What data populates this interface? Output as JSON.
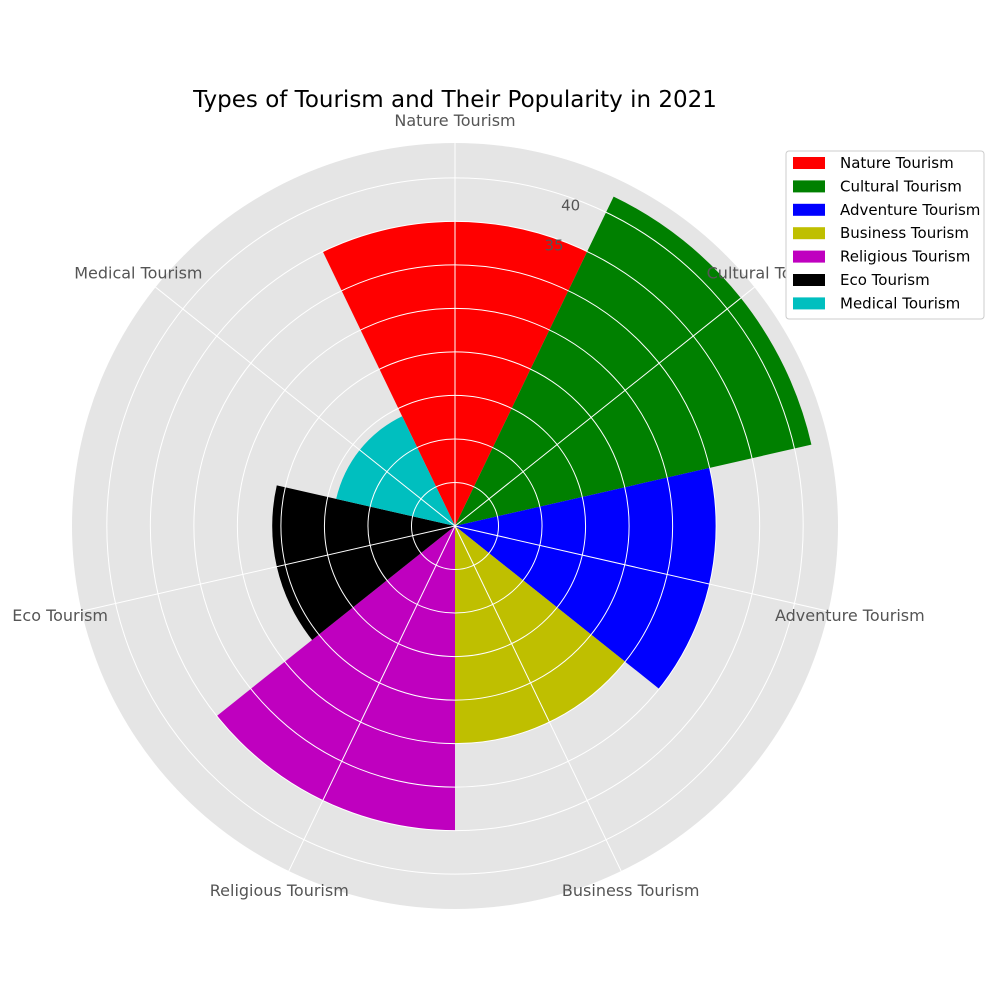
{
  "chart_data": {
    "type": "polar-bar",
    "title": "Types of Tourism and Their Popularity in 2021",
    "categories": [
      "Nature Tourism",
      "Cultural Tourism",
      "Adventure Tourism",
      "Business Tourism",
      "Religious Tourism",
      "Eco Tourism",
      "Medical Tourism"
    ],
    "values": [
      35,
      42,
      30,
      25,
      35,
      21,
      14
    ],
    "colors": [
      "#ff0000",
      "#008000",
      "#0000ff",
      "#bfbf00",
      "#bf00bf",
      "#000000",
      "#00bfbf"
    ],
    "radial_ticks": [
      "35",
      "40"
    ],
    "radial_tick_values": [
      35,
      40
    ],
    "rlim": [
      0,
      44
    ],
    "grid": true,
    "background": "#e5e5e5",
    "legend": {
      "placement": "top-right",
      "entries": [
        "Nature Tourism",
        "Cultural Tourism",
        "Adventure Tourism",
        "Business Tourism",
        "Religious Tourism",
        "Eco Tourism",
        "Medical Tourism"
      ]
    }
  }
}
